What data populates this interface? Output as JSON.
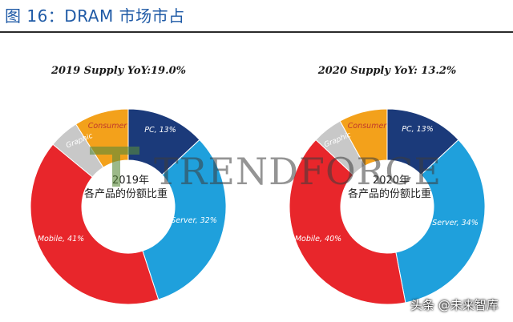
{
  "figure": {
    "title": "图 16：DRAM 市场市占",
    "watermark": "TRENDFORCE",
    "credit": "头条 @未来智库",
    "credit_faded": "未来智库"
  },
  "colors": {
    "PC": "#1b3a7a",
    "Server": "#1fa0dc",
    "Mobile": "#e8262b",
    "Graphic": "#c8c8c8",
    "Consumer": "#f3a11b"
  },
  "chart_data": [
    {
      "type": "pie",
      "title": "2019 Supply YoY:19.0%",
      "center_label": [
        "2019年",
        "各产品的份额比重"
      ],
      "slices": [
        {
          "name": "PC",
          "label": "PC, 13%",
          "value": 13
        },
        {
          "name": "Server",
          "label": "Server, 32%",
          "value": 32
        },
        {
          "name": "Mobile",
          "label": "Mobile, 41%",
          "value": 41
        },
        {
          "name": "Graphic",
          "label": "Graphic",
          "value": 5
        },
        {
          "name": "Consumer",
          "label": "Consumer",
          "value": 9
        }
      ]
    },
    {
      "type": "pie",
      "title": "2020 Supply YoY: 13.2%",
      "center_label": [
        "2020年",
        "各产品的份额比重"
      ],
      "slices": [
        {
          "name": "PC",
          "label": "PC, 13%",
          "value": 13
        },
        {
          "name": "Server",
          "label": "Server, 34%",
          "value": 34
        },
        {
          "name": "Mobile",
          "label": "Mobile, 40%",
          "value": 40
        },
        {
          "name": "Graphic",
          "label": "Graphic",
          "value": 5
        },
        {
          "name": "Consumer",
          "label": "Consumer",
          "value": 8
        }
      ]
    }
  ]
}
